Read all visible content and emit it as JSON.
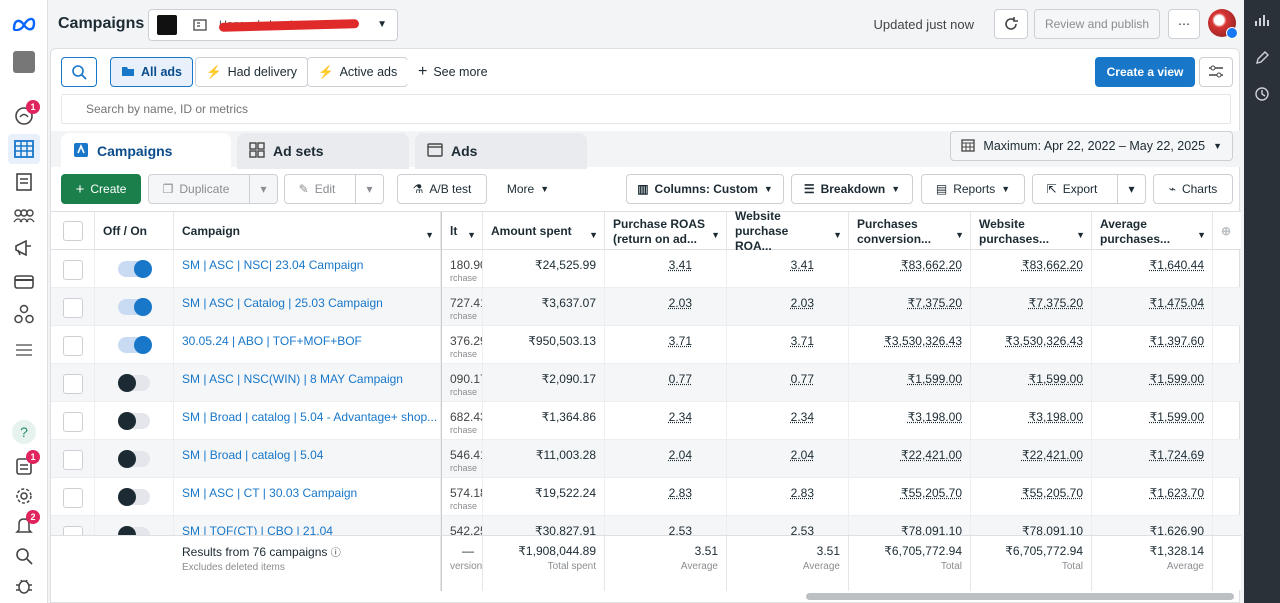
{
  "topbar": {
    "title": "Campaigns",
    "account_name": "Haganela | ... 4...",
    "updated": "Updated just now",
    "review_publish": "Review and publish",
    "more": "⋯"
  },
  "rail": {
    "badges": {
      "notifications": "1",
      "inbox": "1",
      "alerts": "2"
    }
  },
  "filters": {
    "all_ads": "All ads",
    "had_delivery": "Had delivery",
    "active_ads": "Active ads",
    "see_more": "See more",
    "create_view": "Create a view"
  },
  "search": {
    "placeholder": "Search by name, ID or metrics"
  },
  "tabs": [
    "Campaigns",
    "Ad sets",
    "Ads"
  ],
  "date_range": "Maximum: Apr 22, 2022 – May 22, 2025",
  "toolbar": {
    "create": "Create",
    "duplicate": "Duplicate",
    "edit": "Edit",
    "ab_test": "A/B test",
    "more": "More",
    "columns": "Columns: Custom",
    "breakdown": "Breakdown",
    "reports": "Reports",
    "export": "Export",
    "charts": "Charts"
  },
  "columns": {
    "offon": "Off / On",
    "campaign": "Campaign",
    "results_frag": "lt",
    "amount_spent": "Amount spent",
    "purchase_roas": "Purchase ROAS (return on ad...",
    "website_roas": "Website purchase ROA...",
    "purchases_conv": "Purchases conversion...",
    "website_purchases": "Website purchases...",
    "avg_purchases": "Average purchases..."
  },
  "rows": [
    {
      "name": "SM | ASC | NSC| 23.04 Campaign",
      "on": true,
      "frag": "180.90",
      "frag_sub": "rchase",
      "spent": "₹24,525.99",
      "roas": "3.41",
      "wroas": "3.41",
      "conv": "₹83,662.20",
      "wp": "₹83,662.20",
      "avg": "₹1,640.44"
    },
    {
      "name": "SM | ASC | Catalog | 25.03 Campaign",
      "on": true,
      "frag": "727.41",
      "frag_sub": "rchase",
      "spent": "₹3,637.07",
      "roas": "2.03",
      "wroas": "2.03",
      "conv": "₹7,375.20",
      "wp": "₹7,375.20",
      "avg": "₹1,475.04"
    },
    {
      "name": "30.05.24 | ABO | TOF+MOF+BOF",
      "on": true,
      "frag": "376.29",
      "frag_sub": "rchase",
      "spent": "₹950,503.13",
      "roas": "3.71",
      "wroas": "3.71",
      "conv": "₹3,530,326.43",
      "wp": "₹3,530,326.43",
      "avg": "₹1,397.60"
    },
    {
      "name": "SM | ASC | NSC(WIN) | 8 MAY Campaign",
      "on": false,
      "frag": "090.17",
      "frag_sub": "rchase",
      "spent": "₹2,090.17",
      "roas": "0.77",
      "wroas": "0.77",
      "conv": "₹1,599.00",
      "wp": "₹1,599.00",
      "avg": "₹1,599.00"
    },
    {
      "name": "SM | Broad | catalog | 5.04 - Advantage+ shop...",
      "on": false,
      "frag": "682.43",
      "frag_sub": "rchase",
      "spent": "₹1,364.86",
      "roas": "2.34",
      "wroas": "2.34",
      "conv": "₹3,198.00",
      "wp": "₹3,198.00",
      "avg": "₹1,599.00"
    },
    {
      "name": "SM | Broad | catalog | 5.04",
      "on": false,
      "frag": "546.41",
      "frag_sub": "rchase",
      "spent": "₹11,003.28",
      "roas": "2.04",
      "wroas": "2.04",
      "conv": "₹22,421.00",
      "wp": "₹22,421.00",
      "avg": "₹1,724.69"
    },
    {
      "name": "SM | ASC | CT | 30.03 Campaign",
      "on": false,
      "frag": "574.18",
      "frag_sub": "rchase",
      "spent": "₹19,522.24",
      "roas": "2.83",
      "wroas": "2.83",
      "conv": "₹55,205.70",
      "wp": "₹55,205.70",
      "avg": "₹1,623.70"
    },
    {
      "name": "SM | TOF(CT) | CBO | 21.04",
      "on": false,
      "frag": "542.25",
      "frag_sub": "rchase",
      "spent": "₹30,827.91",
      "roas": "2.53",
      "wroas": "2.53",
      "conv": "₹78,091.10",
      "wp": "₹78,091.10",
      "avg": "₹1,626.90"
    }
  ],
  "footer": {
    "results": "Results from 76 campaigns",
    "excludes": "Excludes deleted items",
    "frag": "—",
    "frag_sub": "versions",
    "spent": "₹1,908,044.89",
    "spent_sub": "Total spent",
    "roas": "3.51",
    "roas_sub": "Average",
    "wroas": "3.51",
    "wroas_sub": "Average",
    "conv": "₹6,705,772.94",
    "conv_sub": "Total",
    "wp": "₹6,705,772.94",
    "wp_sub": "Total",
    "avg": "₹1,328.14",
    "avg_sub": "Average"
  }
}
